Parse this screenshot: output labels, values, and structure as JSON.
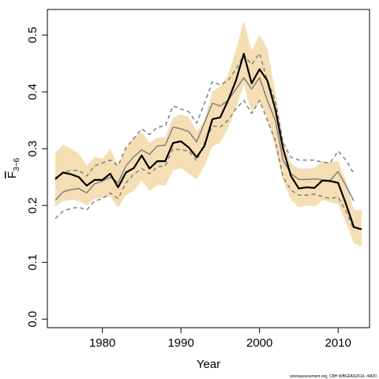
{
  "chart_data": {
    "type": "line",
    "xlabel": "Year",
    "ylabel": {
      "main": "F",
      "sub": "3−6"
    },
    "xlim": [
      1973,
      2014
    ],
    "ylim": [
      -0.015,
      0.545
    ],
    "x_ticks": [
      1980,
      1990,
      2000,
      2010
    ],
    "x_tick_labels": [
      "1980",
      "1990",
      "2000",
      "2010"
    ],
    "y_ticks": [
      0.0,
      0.1,
      0.2,
      0.3,
      0.4,
      0.5
    ],
    "y_tick_labels": [
      "0.0",
      "0.1",
      "0.2",
      "0.3",
      "0.4",
      "0.5"
    ],
    "grid": false,
    "colors": {
      "band": "#f5deb3",
      "main": "#000000",
      "previous": "#808080"
    },
    "credit": "stockassessment.org, CBH    WBGFAS2014, r4820",
    "band": {
      "x": [
        1974,
        1975,
        1976,
        1977,
        1978,
        1979,
        1980,
        1981,
        1982,
        1983,
        1984,
        1985,
        1986,
        1987,
        1988,
        1989,
        1990,
        1991,
        1992,
        1993,
        1994,
        1995,
        1996,
        1997,
        1998,
        1999,
        2000,
        2001,
        2002,
        2003,
        2004,
        2005,
        2006,
        2007,
        2008,
        2009,
        2010,
        2011,
        2012,
        2013
      ],
      "lower": [
        0.198,
        0.208,
        0.21,
        0.208,
        0.2,
        0.212,
        0.214,
        0.216,
        0.196,
        0.218,
        0.226,
        0.244,
        0.226,
        0.236,
        0.235,
        0.262,
        0.266,
        0.256,
        0.246,
        0.27,
        0.304,
        0.31,
        0.337,
        0.371,
        0.413,
        0.364,
        0.382,
        0.354,
        0.3,
        0.244,
        0.21,
        0.197,
        0.2,
        0.198,
        0.21,
        0.206,
        0.202,
        0.17,
        0.134,
        0.127
      ],
      "upper": [
        0.293,
        0.307,
        0.3,
        0.292,
        0.27,
        0.286,
        0.282,
        0.3,
        0.27,
        0.3,
        0.32,
        0.33,
        0.31,
        0.32,
        0.32,
        0.355,
        0.36,
        0.356,
        0.33,
        0.35,
        0.4,
        0.41,
        0.43,
        0.474,
        0.525,
        0.472,
        0.5,
        0.476,
        0.4,
        0.317,
        0.274,
        0.265,
        0.265,
        0.266,
        0.278,
        0.276,
        0.278,
        0.244,
        0.192,
        0.192
      ]
    },
    "series": [
      {
        "x": [
          1974,
          1975,
          1976,
          1977,
          1978,
          1979,
          1980,
          1981,
          1982,
          1983,
          1984,
          1985,
          1986,
          1987,
          1988,
          1989,
          1990,
          1991,
          1992,
          1993,
          1994,
          1995,
          1996,
          1997,
          1998,
          1999,
          2000,
          2001,
          2002,
          2003,
          2004,
          2005,
          2006,
          2007,
          2008,
          2009,
          2010,
          2011,
          2012,
          2013
        ],
        "values": [
          0.247,
          0.258,
          0.255,
          0.25,
          0.235,
          0.245,
          0.245,
          0.256,
          0.232,
          0.258,
          0.266,
          0.288,
          0.265,
          0.278,
          0.278,
          0.31,
          0.313,
          0.302,
          0.285,
          0.305,
          0.352,
          0.355,
          0.385,
          0.42,
          0.467,
          0.415,
          0.44,
          0.42,
          0.37,
          0.3,
          0.252,
          0.23,
          0.232,
          0.231,
          0.244,
          0.243,
          0.24,
          0.203,
          0.162,
          0.158
        ],
        "style": "solid",
        "color": "#000000",
        "width": 2.2
      },
      {
        "x": [
          1974,
          1975,
          1976,
          1977,
          1978,
          1979,
          1980,
          1981,
          1982,
          1983,
          1984,
          1985,
          1986,
          1987,
          1988,
          1989,
          1990,
          1991,
          1992,
          1993,
          1994,
          1995,
          1996,
          1997,
          1998,
          1999,
          2000,
          2001,
          2002,
          2003,
          2004,
          2005,
          2006,
          2007,
          2008,
          2009,
          2010,
          2011,
          2012
        ],
        "values": [
          0.209,
          0.224,
          0.228,
          0.23,
          0.222,
          0.238,
          0.243,
          0.25,
          0.24,
          0.27,
          0.286,
          0.298,
          0.29,
          0.305,
          0.306,
          0.338,
          0.335,
          0.33,
          0.312,
          0.346,
          0.38,
          0.375,
          0.385,
          0.405,
          0.425,
          0.405,
          0.425,
          0.385,
          0.35,
          0.28,
          0.256,
          0.246,
          0.246,
          0.247,
          0.245,
          0.244,
          0.26,
          0.235,
          0.208
        ],
        "style": "solid",
        "color": "#808080",
        "width": 1.5
      },
      {
        "x": [
          1974,
          1975,
          1976,
          1977,
          1978,
          1979,
          1980,
          1981,
          1982,
          1983,
          1984,
          1985,
          1986,
          1987,
          1988,
          1989,
          1990,
          1991,
          1992,
          1993,
          1994,
          1995,
          1996,
          1997,
          1998,
          1999,
          2000,
          2001,
          2002,
          2003,
          2004,
          2005,
          2006,
          2007,
          2008,
          2009,
          2010,
          2011,
          2012
        ],
        "values": [
          0.177,
          0.19,
          0.195,
          0.197,
          0.192,
          0.208,
          0.212,
          0.222,
          0.212,
          0.24,
          0.255,
          0.265,
          0.256,
          0.268,
          0.27,
          0.3,
          0.298,
          0.296,
          0.279,
          0.31,
          0.34,
          0.338,
          0.35,
          0.37,
          0.385,
          0.362,
          0.385,
          0.35,
          0.315,
          0.25,
          0.227,
          0.218,
          0.218,
          0.22,
          0.216,
          0.212,
          0.215,
          0.19,
          0.158
        ],
        "style": "dashed",
        "color": "#808080",
        "width": 1.5
      },
      {
        "x": [
          1974,
          1975,
          1976,
          1977,
          1978,
          1979,
          1980,
          1981,
          1982,
          1983,
          1984,
          1985,
          1986,
          1987,
          1988,
          1989,
          1990,
          1991,
          1992,
          1993,
          1994,
          1995,
          1996,
          1997,
          1998,
          1999,
          2000,
          2001,
          2002,
          2003,
          2004,
          2005,
          2006,
          2007,
          2008,
          2009,
          2010,
          2011,
          2012
        ],
        "values": [
          0.245,
          0.258,
          0.262,
          0.262,
          0.252,
          0.27,
          0.275,
          0.28,
          0.27,
          0.302,
          0.318,
          0.335,
          0.325,
          0.338,
          0.34,
          0.375,
          0.37,
          0.365,
          0.345,
          0.38,
          0.418,
          0.412,
          0.42,
          0.44,
          0.465,
          0.448,
          0.468,
          0.42,
          0.385,
          0.31,
          0.285,
          0.28,
          0.28,
          0.28,
          0.276,
          0.275,
          0.296,
          0.28,
          0.256
        ],
        "style": "dashed",
        "color": "#808080",
        "width": 1.5
      }
    ]
  }
}
